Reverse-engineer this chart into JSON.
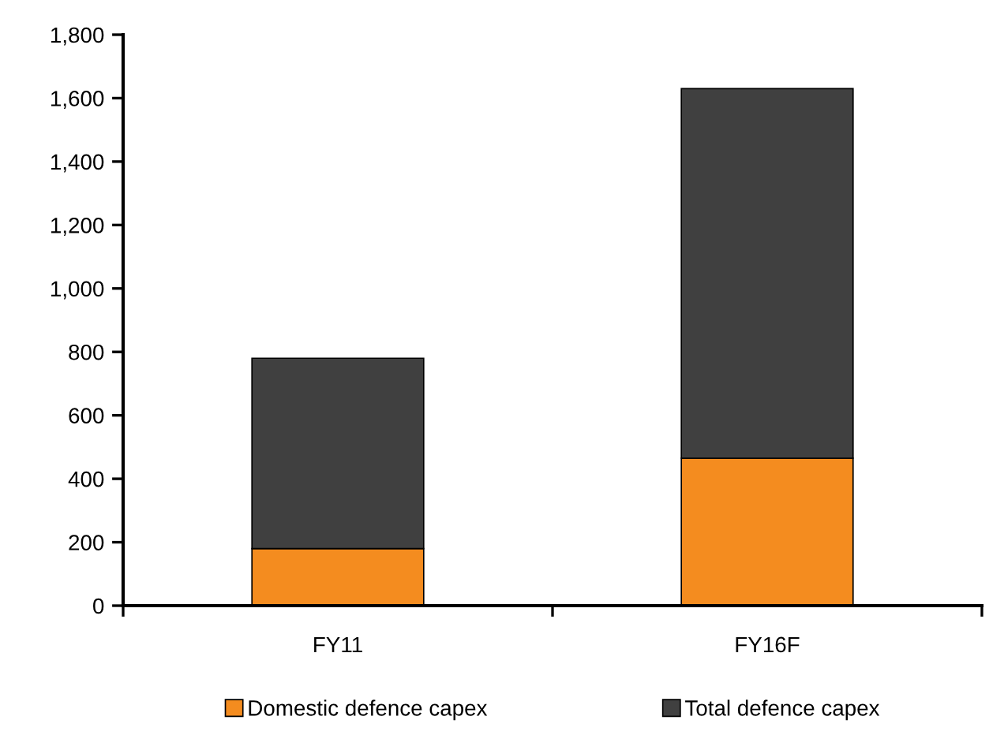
{
  "chart_data": {
    "type": "bar",
    "stacked": true,
    "categories": [
      "FY11",
      "FY16F"
    ],
    "series": [
      {
        "name": "Domestic defence capex",
        "color": "#f48c1f",
        "values": [
          180,
          465
        ]
      },
      {
        "name": "Total defence capex",
        "color": "#404040",
        "values": [
          600,
          1165
        ]
      }
    ],
    "ylim": [
      0,
      1800
    ],
    "yticks": [
      {
        "value": 0,
        "label": "0"
      },
      {
        "value": 200,
        "label": "200"
      },
      {
        "value": 400,
        "label": "400"
      },
      {
        "value": 600,
        "label": "600"
      },
      {
        "value": 800,
        "label": "800"
      },
      {
        "value": 1000,
        "label": "1,000"
      },
      {
        "value": 1200,
        "label": "1,200"
      },
      {
        "value": 1400,
        "label": "1,400"
      },
      {
        "value": 1600,
        "label": "1,600"
      },
      {
        "value": 1800,
        "label": "1,800"
      }
    ],
    "grid": false,
    "legend": "bottom"
  }
}
